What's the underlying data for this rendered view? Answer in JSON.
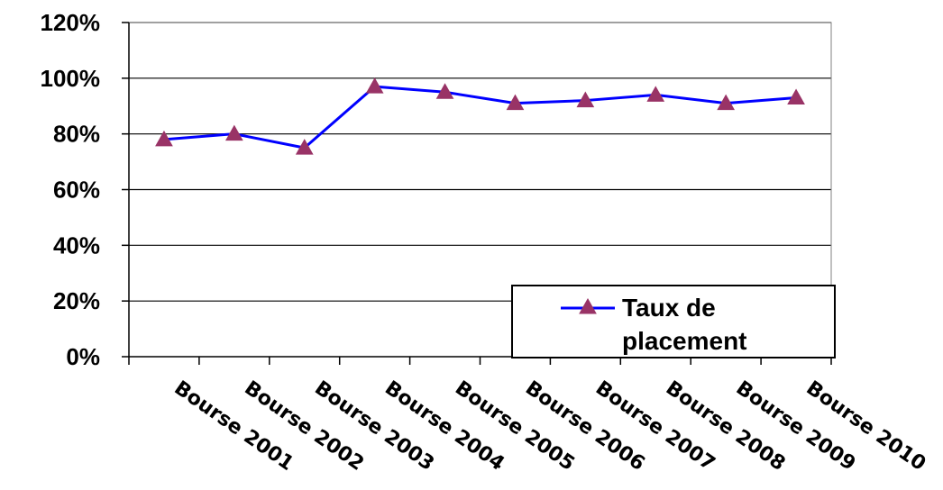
{
  "chart_data": {
    "type": "line",
    "title": "",
    "xlabel": "",
    "ylabel": "",
    "categories": [
      "Bourse 2001",
      "Bourse 2002",
      "Bourse 2003",
      "Bourse 2004",
      "Bourse 2005",
      "Bourse 2006",
      "Bourse 2007",
      "Bourse 2008",
      "Bourse 2009",
      "Bourse 2010"
    ],
    "series": [
      {
        "name": "Taux de placement",
        "values": [
          78,
          80,
          75,
          97,
          95,
          91,
          92,
          94,
          91,
          93
        ]
      }
    ],
    "y_ticks": [
      "0%",
      "20%",
      "40%",
      "60%",
      "80%",
      "100%",
      "120%"
    ],
    "ylim": [
      0,
      120
    ],
    "y_unit": "%",
    "grid": "horizontal",
    "legend_position": "bottom-right",
    "legend_lines": [
      "Taux de",
      "placement"
    ],
    "colors": {
      "line": "#0000ff",
      "marker": "#993366",
      "grid": "#000000"
    }
  }
}
